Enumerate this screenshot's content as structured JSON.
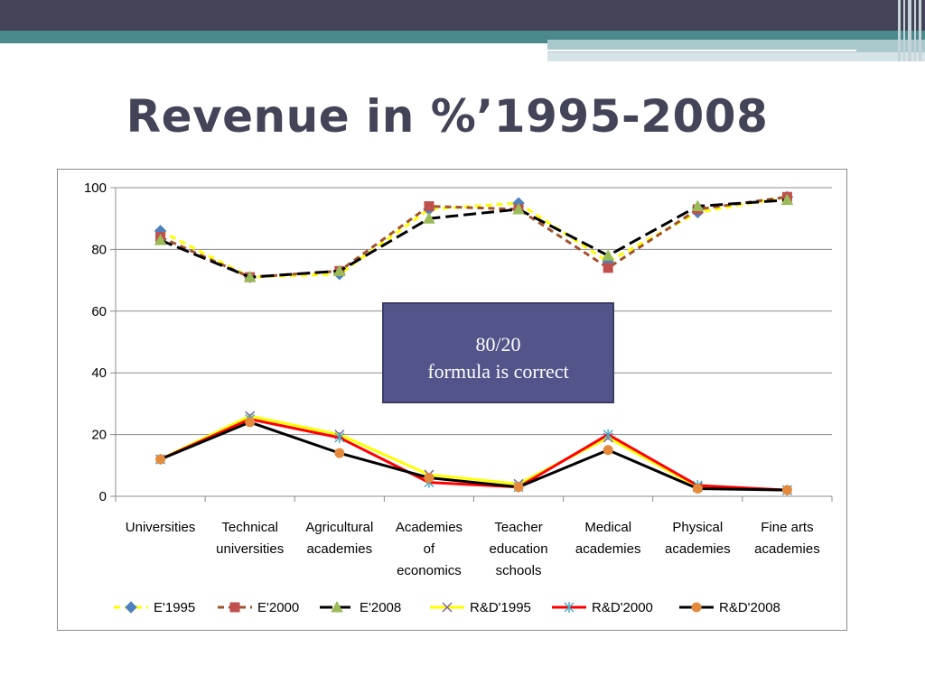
{
  "slide": {
    "title": "Revenue in %’1995-2008"
  },
  "callout": {
    "line1": "80/20",
    "line2": "formula is correct"
  },
  "chart_data": {
    "type": "line",
    "title": "",
    "xlabel": "",
    "ylabel": "",
    "ylim": [
      0,
      100
    ],
    "yticks": [
      0,
      20,
      40,
      60,
      80,
      100
    ],
    "grid": true,
    "legend_position": "bottom",
    "categories": [
      [
        "Universities"
      ],
      [
        "Technical",
        "universities"
      ],
      [
        "Agricultural",
        "academies"
      ],
      [
        "Academies",
        "of",
        "economics"
      ],
      [
        "Teacher",
        "education",
        "schools"
      ],
      [
        "Medical",
        "academies"
      ],
      [
        "Physical",
        "academies"
      ],
      [
        "Fine arts",
        "academies"
      ]
    ],
    "series": [
      {
        "name": "E'1995",
        "values": [
          86,
          71,
          72,
          93,
          95,
          76,
          92,
          97
        ],
        "color": "#ffff00",
        "dash": "dash",
        "marker": "diamond",
        "marker_color": "#4f81bd"
      },
      {
        "name": "E'2000",
        "values": [
          84,
          71,
          73,
          94,
          93,
          74,
          93,
          97
        ],
        "color": "#a0522d",
        "dash": "dash",
        "marker": "square",
        "marker_color": "#c0504d"
      },
      {
        "name": "E'2008",
        "values": [
          83,
          71,
          73,
          90,
          93,
          78,
          94,
          96
        ],
        "color": "#000000",
        "dash": "longdash",
        "marker": "triangle",
        "marker_color": "#9bbb59"
      },
      {
        "name": "R&D'1995",
        "values": [
          12,
          26,
          20,
          7,
          4,
          19,
          3,
          2
        ],
        "color": "#ffff00",
        "dash": "solid",
        "marker": "x",
        "marker_color": "#8064a2"
      },
      {
        "name": "R&D'2000",
        "values": [
          12,
          25,
          19,
          4.5,
          3,
          20,
          3.5,
          2
        ],
        "color": "#ff0000",
        "dash": "solid",
        "marker": "star",
        "marker_color": "#4bacc6"
      },
      {
        "name": "R&D'2008",
        "values": [
          12,
          24,
          14,
          6,
          3,
          15,
          2.5,
          2
        ],
        "color": "#000000",
        "dash": "solid",
        "marker": "circle",
        "marker_color": "#e48a3c"
      }
    ]
  }
}
